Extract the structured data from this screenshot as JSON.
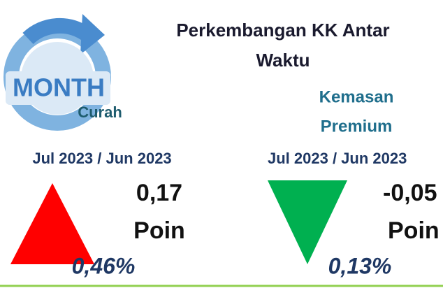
{
  "header": {
    "title_line1": "Perkembangan KK Antar",
    "title_line2": "Waktu"
  },
  "icon": {
    "label": "MONTH"
  },
  "left": {
    "name": "Curah",
    "period": "Jul 2023 / Jun 2023",
    "change": "0,17",
    "unit": "Poin",
    "percent": "0,46%"
  },
  "right": {
    "name_line1": "Kemasan",
    "name_line2": "Premium",
    "period": "Jul 2023 / Jun 2023",
    "change": "-0,05",
    "unit": "Poin",
    "percent": "0,13%"
  }
}
